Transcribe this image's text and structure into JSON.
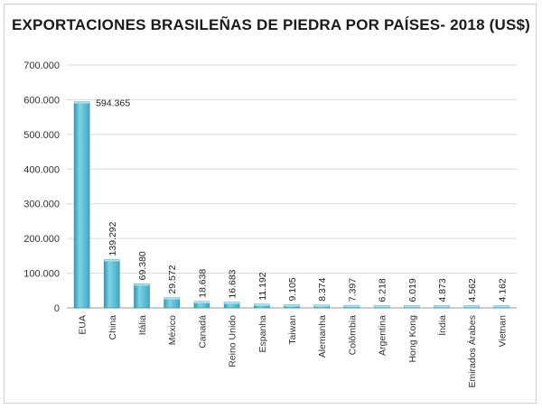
{
  "chart_data": {
    "type": "bar",
    "title": "EXPORTACIONES BRASILEÑAS DE PIEDRA POR PAÍSES- 2018 (US$)",
    "xlabel": "",
    "ylabel": "",
    "ylim": [
      0,
      700000
    ],
    "yticks": [
      "0",
      "100.000",
      "200.000",
      "300.000",
      "400.000",
      "500.000",
      "600.000",
      "700.000"
    ],
    "categories": [
      "EUA",
      "China",
      "Itália",
      "México",
      "Canadá",
      "Reino Unido",
      "Espanha",
      "Taiwan",
      "Alemanha",
      "Colômbia",
      "Argentina",
      "Hong Kong",
      "Índia",
      "Emirados Árabes",
      "Vietnan"
    ],
    "values": [
      594365,
      139292,
      69380,
      29572,
      18638,
      16683,
      11192,
      9105,
      8374,
      7397,
      6218,
      6019,
      4873,
      4562,
      4162
    ],
    "data_labels": [
      "594.365",
      "139.292",
      "69.380",
      "29.572",
      "18.638",
      "16.683",
      "11.192",
      "9.105",
      "8.374",
      "7.397",
      "6.218",
      "6.019",
      "4.873",
      "4.562",
      "4.162"
    ],
    "grid": true,
    "legend": "none",
    "bar_color": "#4fb8cf"
  }
}
